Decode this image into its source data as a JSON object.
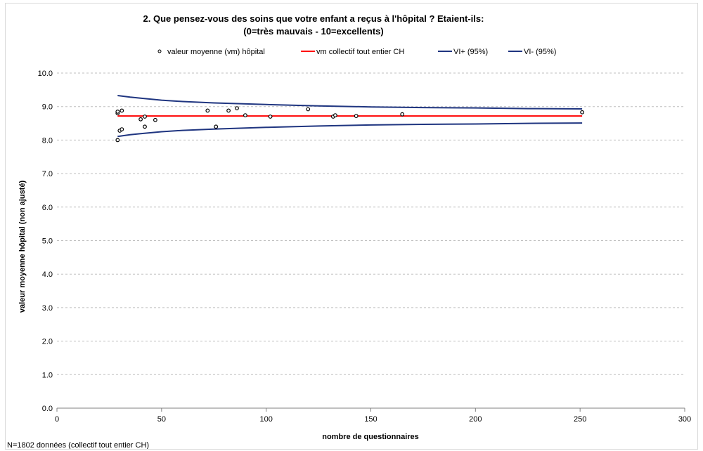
{
  "chart_data": {
    "type": "scatter",
    "title": "2. Que pensez-vous des soins que votre enfant a reçus à l'hôpital ? Etaient-ils:",
    "subtitle": "(0=très mauvais - 10=excellents)",
    "xlabel": "nombre de questionnaires",
    "ylabel": "valeur moyenne hôpital (non ajusté)",
    "xlim": [
      0,
      300
    ],
    "ylim": [
      0,
      10
    ],
    "xticks": [
      "0",
      "50",
      "100",
      "150",
      "200",
      "250",
      "300"
    ],
    "yticks": [
      "0.0",
      "1.0",
      "2.0",
      "3.0",
      "4.0",
      "5.0",
      "6.0",
      "7.0",
      "8.0",
      "9.0",
      "10.0"
    ],
    "grid": "horizontal dashed",
    "legend_position": "top",
    "legend": [
      {
        "label": "valeur moyenne (vm) hôpital",
        "marker": "circle",
        "color": "#000000"
      },
      {
        "label": "vm collectif tout entier CH",
        "marker": "line",
        "color": "#ff0000"
      },
      {
        "label": "VI+ (95%)",
        "marker": "line",
        "color": "#1f3580"
      },
      {
        "label": "VI- (95%)",
        "marker": "line",
        "color": "#1f3580"
      }
    ],
    "series": [
      {
        "name": "valeur moyenne (vm) hôpital",
        "kind": "scatter",
        "color": "#000000",
        "points": [
          [
            29,
            8.0
          ],
          [
            29,
            8.8
          ],
          [
            29,
            8.85
          ],
          [
            30,
            8.28
          ],
          [
            31,
            8.32
          ],
          [
            31,
            8.88
          ],
          [
            40,
            8.62
          ],
          [
            42,
            8.4
          ],
          [
            42,
            8.7
          ],
          [
            47,
            8.6
          ],
          [
            72,
            8.88
          ],
          [
            76,
            8.4
          ],
          [
            82,
            8.88
          ],
          [
            86,
            8.95
          ],
          [
            90,
            8.74
          ],
          [
            102,
            8.7
          ],
          [
            120,
            8.92
          ],
          [
            132,
            8.7
          ],
          [
            133,
            8.74
          ],
          [
            143,
            8.72
          ],
          [
            165,
            8.77
          ],
          [
            251,
            8.83
          ]
        ]
      },
      {
        "name": "vm collectif tout entier CH",
        "kind": "line",
        "color": "#ff0000",
        "points": [
          [
            29,
            8.72
          ],
          [
            251,
            8.72
          ]
        ]
      },
      {
        "name": "VI+ (95%)",
        "kind": "line",
        "color": "#1f3580",
        "points": [
          [
            29,
            9.33
          ],
          [
            35,
            9.28
          ],
          [
            40,
            9.25
          ],
          [
            50,
            9.19
          ],
          [
            60,
            9.15
          ],
          [
            75,
            9.11
          ],
          [
            100,
            9.06
          ],
          [
            125,
            9.02
          ],
          [
            150,
            8.99
          ],
          [
            175,
            8.97
          ],
          [
            200,
            8.96
          ],
          [
            225,
            8.94
          ],
          [
            251,
            8.93
          ]
        ]
      },
      {
        "name": "VI- (95%)",
        "kind": "line",
        "color": "#1f3580",
        "points": [
          [
            29,
            8.11
          ],
          [
            35,
            8.16
          ],
          [
            40,
            8.19
          ],
          [
            50,
            8.25
          ],
          [
            60,
            8.29
          ],
          [
            75,
            8.33
          ],
          [
            100,
            8.38
          ],
          [
            125,
            8.42
          ],
          [
            150,
            8.45
          ],
          [
            175,
            8.47
          ],
          [
            200,
            8.48
          ],
          [
            225,
            8.5
          ],
          [
            251,
            8.51
          ]
        ]
      }
    ],
    "footnote": "N=1802 données (collectif tout entier CH)"
  }
}
